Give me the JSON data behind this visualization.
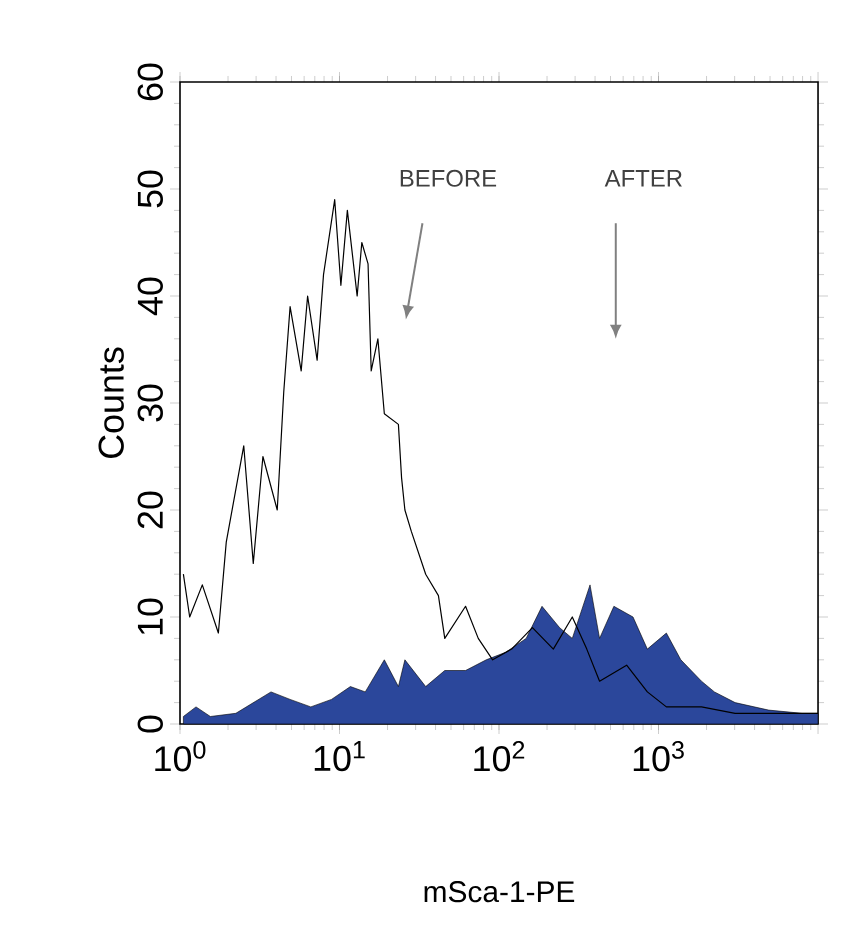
{
  "chart_data": {
    "type": "line",
    "xlabel": "mSca-1-PE",
    "ylabel": "Counts",
    "log": "x",
    "grid": false,
    "xlim": [
      1,
      10000
    ],
    "ylim": [
      0,
      60
    ],
    "xticks": [
      {
        "value": 1,
        "label": "10$^{0}$"
      },
      {
        "value": 10,
        "label": "10$^{1}$"
      },
      {
        "value": 100,
        "label": "10$^{2}$"
      },
      {
        "value": 1000,
        "label": "10$^{3}$"
      },
      {
        "value": 10000,
        "label": null
      }
    ],
    "yticks": [
      0,
      10,
      20,
      30,
      40,
      50,
      60
    ],
    "annotations": [
      "BEFORE",
      "AFTER"
    ],
    "series": [
      {
        "type": "area",
        "color": "#2b479b",
        "x": [
          1.05,
          1.26,
          1.55,
          2.24,
          3.72,
          4.9,
          6.61,
          8.91,
          11.7,
          14.5,
          19.1,
          23.4,
          25.7,
          34.7,
          45.7,
          61.7,
          83.2,
          110,
          148,
          186,
          240,
          288,
          372,
          427,
          525,
          692,
          851,
          1120,
          1380,
          1860,
          2240,
          3020,
          4900,
          7940,
          10000
        ],
        "values": [
          0.7,
          1.6,
          0.7,
          1,
          3,
          2.3,
          1.6,
          2.3,
          3.5,
          3,
          6,
          3.5,
          6,
          3.5,
          5,
          5,
          6,
          6.7,
          8,
          11,
          9,
          8,
          13,
          8,
          11,
          10,
          7,
          8.5,
          6,
          4,
          3,
          2,
          1.3,
          1,
          1
        ]
      },
      {
        "color": "#000000",
        "x": [
          1.05,
          1.15,
          1.38,
          1.74,
          1.95,
          2.51,
          2.88,
          3.31,
          4.07,
          4.47,
          4.9,
          5.75,
          6.31,
          7.24,
          7.94,
          9.33,
          10.2,
          11.2,
          12.9,
          13.8,
          15.1,
          15.8,
          17.4,
          19.1,
          23.4,
          24.5,
          25.7,
          28.2,
          34.7,
          41.7,
          45.7,
          61.7,
          74.1,
          91.2,
          120,
          162,
          219,
          288,
          355,
          427,
          631,
          851,
          1120,
          1860,
          3020,
          7940,
          10000
        ],
        "values": [
          14,
          10,
          13,
          8.5,
          17,
          26,
          15,
          25,
          20,
          31,
          39,
          33,
          40,
          34,
          42,
          49,
          41,
          48,
          40,
          45,
          43,
          33,
          36,
          29,
          28,
          23,
          20,
          18,
          14,
          12,
          8,
          11,
          8,
          6,
          7,
          9,
          7,
          10,
          7,
          4,
          5.5,
          3,
          1.6,
          1.6,
          1,
          1,
          1
        ]
      }
    ]
  }
}
